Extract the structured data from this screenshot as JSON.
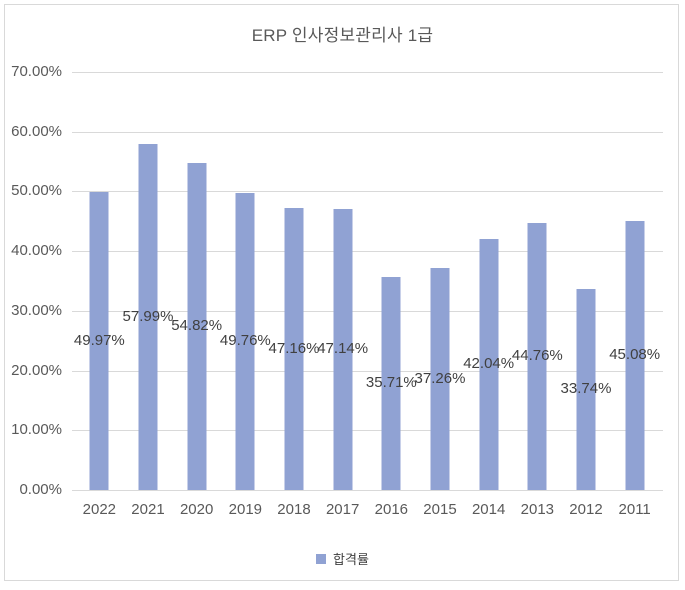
{
  "chart_data": {
    "type": "bar",
    "title": "ERP 인사정보관리사 1급",
    "categories": [
      "2022",
      "2021",
      "2020",
      "2019",
      "2018",
      "2017",
      "2016",
      "2015",
      "2014",
      "2013",
      "2012",
      "2011"
    ],
    "series": [
      {
        "name": "합격률",
        "values": [
          49.97,
          57.99,
          54.82,
          49.76,
          47.16,
          47.14,
          35.71,
          37.26,
          42.04,
          44.76,
          33.74,
          45.08
        ],
        "data_labels": [
          "49.97%",
          "57.99%",
          "54.82%",
          "49.76%",
          "47.16%",
          "47.14%",
          "35.71%",
          "37.26%",
          "42.04%",
          "44.76%",
          "33.74%",
          "45.08%"
        ]
      }
    ],
    "xlabel": "",
    "ylabel": "",
    "ylim": [
      0,
      70
    ],
    "y_tick_labels": [
      "70.00%",
      "60.00%",
      "50.00%",
      "40.00%",
      "30.00%",
      "20.00%",
      "10.00%",
      "0.00%"
    ],
    "grid": true,
    "data_label_position": "center-of-bar",
    "legend_position": "bottom",
    "legend_entries": [
      "합격률"
    ],
    "colors": {
      "bar": "#90a2d3",
      "gridline": "#d9d9d9",
      "axis_text": "#595959",
      "data_label_text": "#404040",
      "title_text": "#595959",
      "border": "#d9d9d9",
      "background": "#ffffff"
    }
  }
}
